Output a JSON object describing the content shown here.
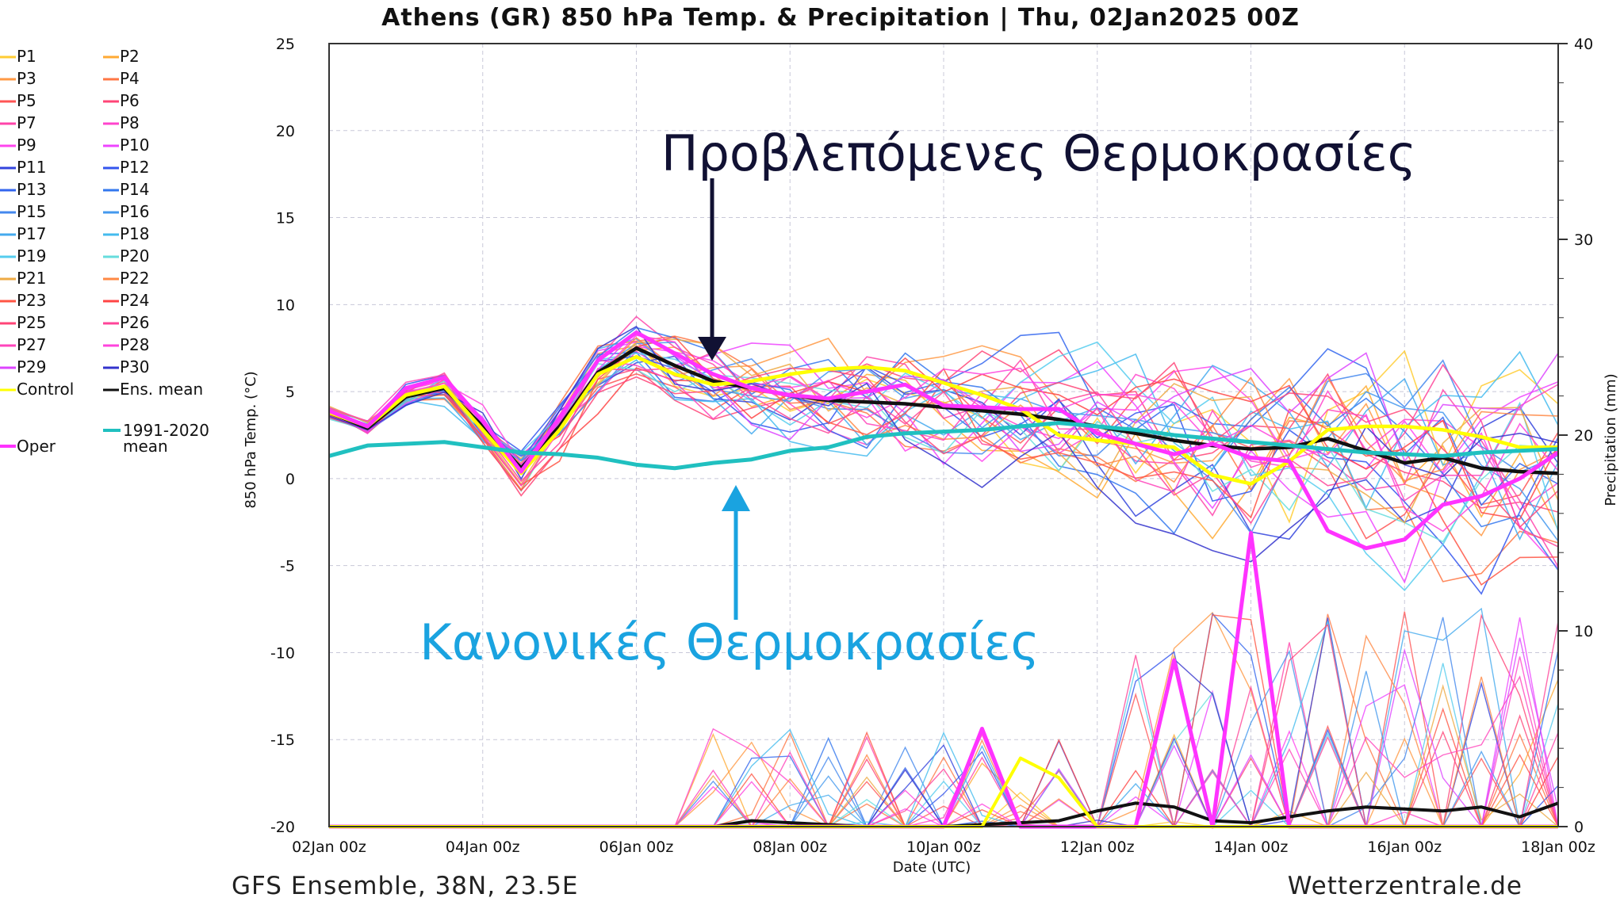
{
  "chart_data": {
    "type": "line",
    "title": "Athens  (GR)  850 hPa Temp. & Precipitation | Thu, 02Jan2025 00Z",
    "ylabel": "850 hPa Temp. (°C)",
    "y2label": "Precipitation (mm)",
    "xlabel": "Date (UTC)",
    "ylim": [
      -20,
      25
    ],
    "y2lim": [
      0,
      40
    ],
    "yticks": [
      "25",
      "20",
      "15",
      "10",
      "5",
      "0",
      "-5",
      "-10",
      "-15",
      "-20"
    ],
    "y2ticks": [
      "40",
      "30",
      "20",
      "10",
      "0"
    ],
    "xticks": [
      "02Jan 00z",
      "04Jan 00z",
      "06Jan 00z",
      "08Jan 00z",
      "10Jan 00z",
      "12Jan 00z",
      "14Jan 00z",
      "16Jan 00z",
      "18Jan 00z"
    ],
    "grid": true,
    "x_hours": [
      0,
      12,
      24,
      36,
      48,
      60,
      72,
      84,
      96,
      108,
      120,
      132,
      144,
      156,
      168,
      180,
      192,
      204,
      216,
      228,
      240,
      252,
      264,
      276,
      288,
      300,
      312,
      324,
      336,
      348,
      360,
      372,
      384
    ],
    "series": [
      {
        "name": "Ens. mean",
        "color": "#111111",
        "values": [
          3.8,
          2.9,
          4.7,
          5.2,
          3.0,
          0.6,
          3.0,
          6.1,
          7.5,
          6.5,
          5.6,
          5.2,
          4.8,
          4.5,
          4.4,
          4.3,
          4.1,
          3.9,
          3.7,
          3.4,
          3.0,
          2.6,
          2.2,
          1.9,
          1.7,
          1.8,
          2.3,
          1.6,
          0.9,
          1.2,
          0.6,
          0.4,
          0.3
        ]
      },
      {
        "name": "Control",
        "color": "#ffff00",
        "values": [
          3.8,
          3.0,
          4.8,
          5.3,
          2.8,
          0.3,
          2.8,
          6.0,
          7.0,
          6.0,
          5.4,
          5.6,
          6.0,
          6.3,
          6.4,
          6.2,
          5.5,
          4.8,
          4.0,
          2.5,
          2.2,
          2.0,
          1.8,
          0.2,
          -0.3,
          1.0,
          2.8,
          3.0,
          3.0,
          2.8,
          2.4,
          1.8,
          1.8
        ]
      },
      {
        "name": "Oper",
        "color": "#ff33ff",
        "values": [
          3.9,
          3.0,
          5.2,
          5.8,
          3.3,
          0.4,
          3.5,
          6.8,
          8.4,
          7.2,
          6.0,
          5.2,
          4.8,
          4.6,
          5.0,
          5.4,
          4.2,
          4.1,
          4.0,
          4.0,
          2.6,
          2.0,
          1.4,
          2.0,
          1.2,
          1.0,
          -3.0,
          -4.0,
          -3.5,
          -1.5,
          -1.0,
          0.0,
          1.5
        ]
      },
      {
        "name": "1991-2020 mean",
        "color": "#20c0c0",
        "values": [
          1.3,
          1.9,
          2.0,
          2.1,
          1.8,
          1.5,
          1.4,
          1.2,
          0.8,
          0.6,
          0.9,
          1.1,
          1.6,
          1.8,
          2.4,
          2.6,
          2.7,
          2.8,
          3.0,
          3.2,
          3.0,
          2.8,
          2.5,
          2.3,
          2.1,
          1.9,
          1.7,
          1.5,
          1.4,
          1.3,
          1.5,
          1.6,
          1.7
        ]
      }
    ],
    "precip_series": [
      {
        "name": "Ens. mean",
        "color": "#111111",
        "values": [
          0,
          0,
          0,
          0,
          0,
          0,
          0,
          0,
          0,
          0,
          0,
          0.3,
          0.2,
          0.1,
          0,
          0,
          0,
          0.1,
          0.2,
          0.3,
          0.8,
          1.2,
          1.0,
          0.3,
          0.2,
          0.5,
          0.8,
          1.0,
          0.9,
          0.8,
          1.0,
          0.5,
          1.2
        ]
      },
      {
        "name": "Oper",
        "color": "#ff33ff",
        "values": [
          0,
          0,
          0,
          0,
          0,
          0,
          0,
          0,
          0,
          0,
          0,
          0,
          0,
          0,
          0,
          0,
          0,
          5.0,
          0,
          0,
          0,
          0,
          8.5,
          0,
          15.0,
          0,
          0,
          0,
          0,
          0,
          0,
          0,
          0
        ]
      },
      {
        "name": "Control",
        "color": "#ffff00",
        "values": [
          0,
          0,
          0,
          0,
          0,
          0,
          0,
          0,
          0,
          0,
          0,
          0,
          0,
          0,
          0,
          0,
          0,
          0,
          3.5,
          2.5,
          0,
          0,
          0,
          0,
          0,
          0,
          0,
          0,
          0,
          0,
          0,
          0,
          0
        ]
      }
    ],
    "legend": [
      [
        "P1",
        "P2"
      ],
      [
        "P3",
        "P4"
      ],
      [
        "P5",
        "P6"
      ],
      [
        "P7",
        "P8"
      ],
      [
        "P9",
        "P10"
      ],
      [
        "P11",
        "P12"
      ],
      [
        "P13",
        "P14"
      ],
      [
        "P15",
        "P16"
      ],
      [
        "P17",
        "P18"
      ],
      [
        "P19",
        "P20"
      ],
      [
        "P21",
        "P22"
      ],
      [
        "P23",
        "P24"
      ],
      [
        "P25",
        "P26"
      ],
      [
        "P27",
        "P28"
      ],
      [
        "P29",
        "P30"
      ],
      [
        "Control",
        "Ens. mean"
      ]
    ],
    "legend_colors": [
      [
        "#ffcc33",
        "#ffaa33"
      ],
      [
        "#ff9944",
        "#ff7744"
      ],
      [
        "#ff5555",
        "#ff4477"
      ],
      [
        "#ff44aa",
        "#ff44cc"
      ],
      [
        "#ff44ee",
        "#ee44ff"
      ],
      [
        "#3344dd",
        "#3355ee"
      ],
      [
        "#3366ee",
        "#3377ee"
      ],
      [
        "#4488ee",
        "#4499ee"
      ],
      [
        "#44aaee",
        "#44bbee"
      ],
      [
        "#55ccee",
        "#66dddd"
      ],
      [
        "#eeaa44",
        "#ff8844"
      ],
      [
        "#ff5544",
        "#ff4444"
      ],
      [
        "#ff4477",
        "#ff4499"
      ],
      [
        "#ff44bb",
        "#ff44dd"
      ],
      [
        "#dd44ff",
        "#3333cc"
      ],
      [
        "#ffff00",
        "#111111"
      ]
    ],
    "legend_extra": [
      {
        "label": "1991-2020",
        "label2": "mean",
        "color": "#20c0c0"
      },
      {
        "label": "Oper",
        "color": "#ff33ff"
      }
    ]
  },
  "annotations": {
    "forecast_label": "Προβλεπόμενες Θερμοκρασίες",
    "forecast_color": "#111133",
    "normal_label": "Κανονικές Θερμοκρασίες",
    "normal_color": "#1aa3e0"
  },
  "footer": {
    "left": "GFS Ensemble, 38N, 23.5E",
    "right": "Wetterzentrale.de"
  }
}
